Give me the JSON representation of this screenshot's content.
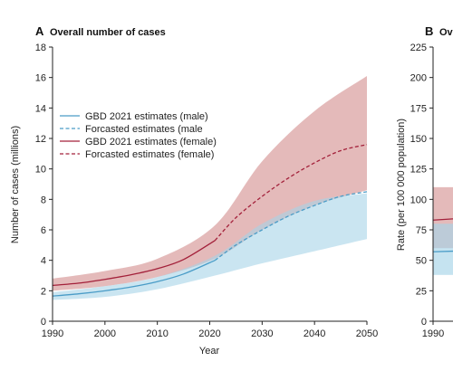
{
  "chart_data": [
    {
      "panel": "A",
      "type": "line",
      "title": "Overall number of cases",
      "xlabel": "Year",
      "ylabel": "Number of cases (millions)",
      "xlim": [
        1990,
        2050
      ],
      "ylim": [
        0,
        18
      ],
      "x_ticks": [
        "1990",
        "2000",
        "2010",
        "2020",
        "2030",
        "2040",
        "2050"
      ],
      "y_ticks": [
        "0",
        "2",
        "4",
        "6",
        "8",
        "10",
        "12",
        "14",
        "16",
        "18"
      ],
      "grid": false,
      "legend_position": "upper-left",
      "colors": {
        "male": "#4a9cc7",
        "male_band": "#a6d4e8",
        "female": "#a3203a",
        "female_band": "#dba3a3"
      },
      "series": [
        {
          "name": "GBD 2021 estimates (male)",
          "style": "solid",
          "color": "#4a9cc7",
          "x": [
            1990,
            1995,
            2000,
            2005,
            2010,
            2015,
            2021
          ],
          "y": [
            1.65,
            1.8,
            2.0,
            2.25,
            2.6,
            3.1,
            4.0
          ]
        },
        {
          "name": "Forcasted estimates (male",
          "style": "dashed",
          "color": "#4a9cc7",
          "x": [
            2021,
            2025,
            2030,
            2035,
            2040,
            2045,
            2050
          ],
          "y": [
            4.0,
            5.0,
            6.0,
            6.9,
            7.6,
            8.2,
            8.5
          ]
        },
        {
          "name": "GBD 2021 estimates (female)",
          "style": "solid",
          "color": "#a3203a",
          "x": [
            1990,
            1995,
            2000,
            2005,
            2010,
            2015,
            2021
          ],
          "y": [
            2.35,
            2.5,
            2.75,
            3.05,
            3.45,
            4.05,
            5.3
          ]
        },
        {
          "name": "Forcasted estimates (female)",
          "style": "dashed",
          "color": "#a3203a",
          "x": [
            2021,
            2025,
            2030,
            2035,
            2040,
            2045,
            2050
          ],
          "y": [
            5.3,
            6.8,
            8.2,
            9.4,
            10.4,
            11.2,
            11.6
          ]
        }
      ],
      "bands": [
        {
          "series": "male",
          "color": "#a6d4e8",
          "x": [
            1990,
            2000,
            2010,
            2021,
            2030,
            2040,
            2050
          ],
          "lower": [
            1.4,
            1.6,
            2.1,
            3.0,
            3.8,
            4.6,
            5.4
          ],
          "upper": [
            1.9,
            2.3,
            2.9,
            4.3,
            6.4,
            7.9,
            8.4
          ]
        },
        {
          "series": "female",
          "color": "#dba3a3",
          "x": [
            1990,
            2000,
            2010,
            2021,
            2030,
            2040,
            2050
          ],
          "lower": [
            2.0,
            2.3,
            2.9,
            4.1,
            6.0,
            7.6,
            8.6
          ],
          "upper": [
            2.8,
            3.3,
            4.1,
            6.3,
            10.5,
            13.8,
            16.1
          ]
        }
      ]
    },
    {
      "panel": "B",
      "type": "line",
      "title": "Ov",
      "xlabel": "",
      "ylabel": "Rate (per 100 000 population)",
      "ylim": [
        0,
        225
      ],
      "x_ticks": [
        "1990"
      ],
      "y_ticks": [
        "0",
        "25",
        "50",
        "75",
        "100",
        "125",
        "150",
        "175",
        "200",
        "225"
      ]
    }
  ]
}
